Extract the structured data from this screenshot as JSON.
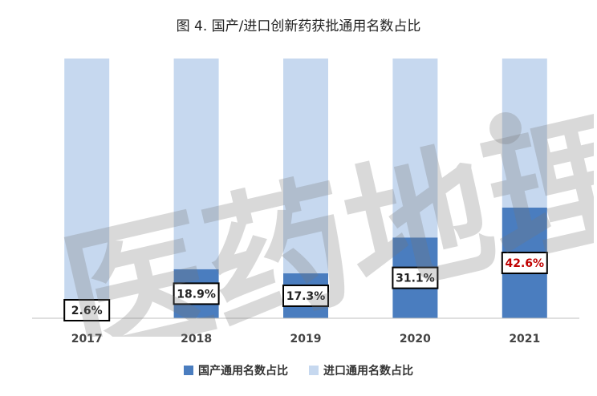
{
  "chart_data": {
    "type": "bar",
    "stacked": true,
    "percent": true,
    "title": "图 4. 国产/进口创新药获批通用名数占比",
    "categories": [
      "2017",
      "2018",
      "2019",
      "2020",
      "2021"
    ],
    "series": [
      {
        "name": "国产通用名数占比",
        "values": [
          2.6,
          18.9,
          17.3,
          31.1,
          42.6
        ],
        "color": "#4a7dbf"
      },
      {
        "name": "进口通用名数占比",
        "values": [
          97.4,
          81.1,
          82.7,
          68.9,
          57.4
        ],
        "color": "#c6d8ef"
      }
    ],
    "data_labels": [
      "2.6%",
      "18.9%",
      "17.3%",
      "31.1%",
      "42.6%"
    ],
    "highlight_label_color": "#c00000",
    "ylim": [
      0,
      100
    ],
    "grid": false,
    "legend_position": "bottom"
  },
  "watermark": {
    "text": "医药地理"
  }
}
